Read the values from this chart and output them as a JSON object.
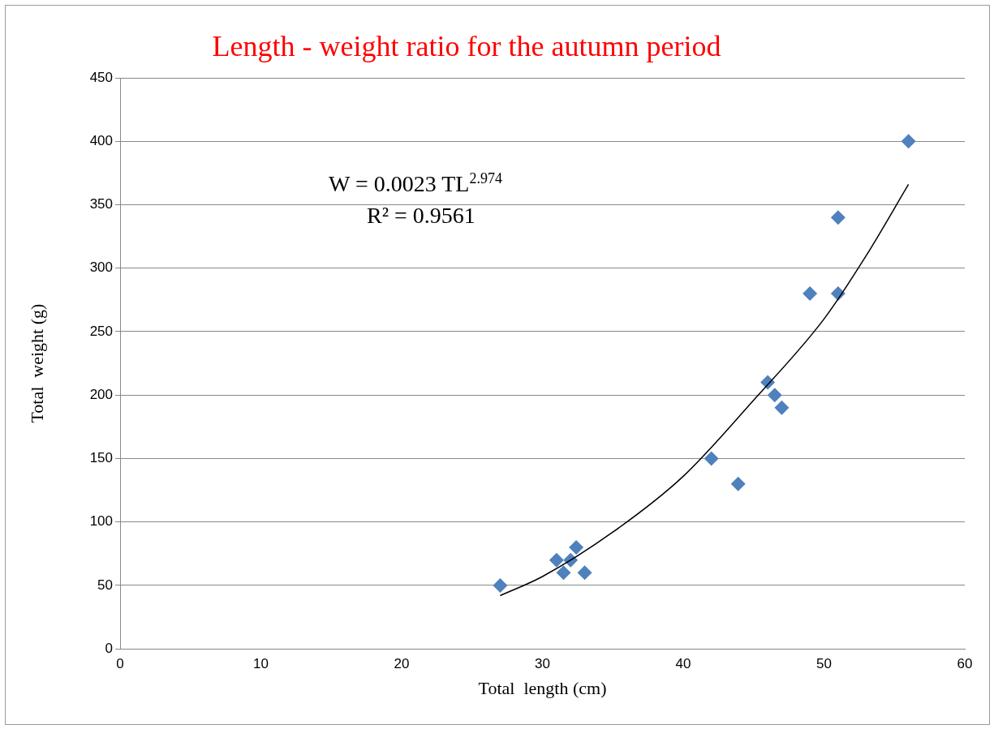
{
  "chart_data": {
    "type": "scatter",
    "title": "Length - weight ratio for the autumn period",
    "xlabel": "Total  length (cm)",
    "ylabel": "Total  weight (g)",
    "xlim": [
      0,
      60
    ],
    "xticks": [
      0,
      10,
      20,
      30,
      40,
      50,
      60
    ],
    "ylim": [
      0,
      450
    ],
    "yticks": [
      0,
      50,
      100,
      150,
      200,
      250,
      300,
      350,
      400,
      450
    ],
    "grid": "y",
    "legend": false,
    "marker": "diamond",
    "series": [
      {
        "type": "scatter",
        "color": "#4f81bd",
        "x": [
          27,
          31,
          31.5,
          32,
          32.4,
          33,
          42,
          43.9,
          46,
          46.5,
          47,
          49,
          51,
          51,
          56
        ],
        "values": [
          50,
          70,
          60,
          70,
          80,
          60,
          150,
          130,
          210,
          200,
          190,
          280,
          280,
          340,
          400
        ]
      },
      {
        "type": "line",
        "color": "#000000",
        "marker": "none",
        "x": [
          27,
          30,
          35,
          40,
          45,
          50,
          53,
          56
        ],
        "values": [
          42,
          57,
          92,
          136,
          196,
          260,
          310,
          366
        ]
      }
    ],
    "annotations": [
      "W = 0.0023 TL$^{2.974}$",
      "R² = 0.9561"
    ]
  }
}
